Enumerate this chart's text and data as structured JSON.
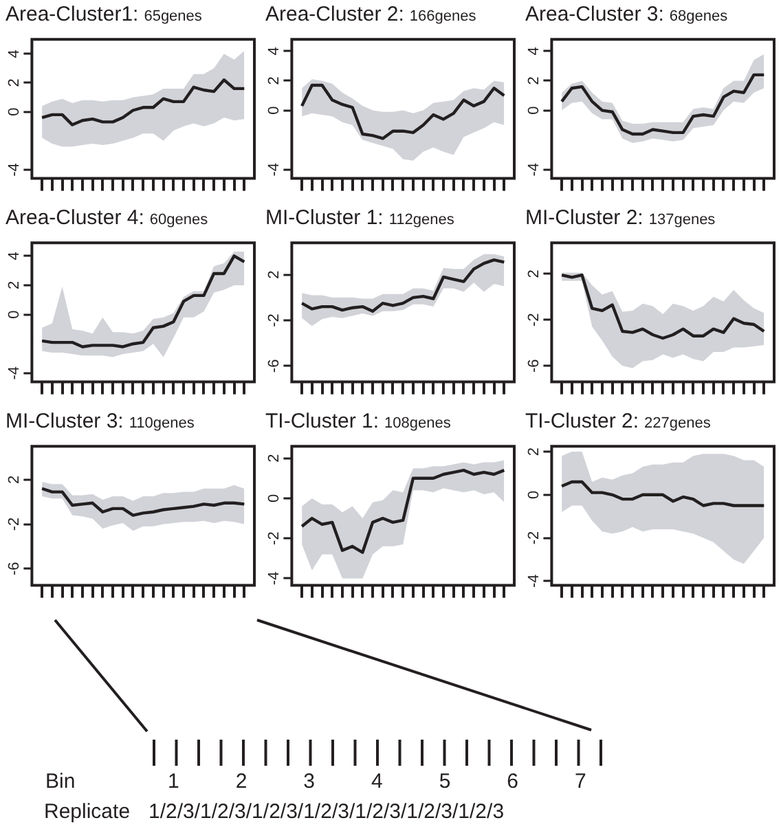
{
  "chart_data": [
    {
      "type": "line",
      "title": "Area-Cluster1:",
      "subtitle": "65genes",
      "categories": [
        null,
        null,
        null,
        null,
        null,
        null,
        null,
        null,
        null,
        null,
        null,
        null,
        null,
        null,
        null,
        null,
        null,
        null,
        null,
        null,
        null
      ],
      "ylim": [
        -4.6,
        5
      ],
      "yticks": [
        -4,
        0,
        2,
        4
      ],
      "tick_labels": "y",
      "grid": false,
      "legend": false,
      "marker": "none",
      "line_style": "solid",
      "series": [
        {
          "color": "#231f20",
          "values": [
            -0.4,
            -0.2,
            -0.2,
            -0.9,
            -0.6,
            -0.5,
            -0.7,
            -0.7,
            -0.4,
            0.1,
            0.3,
            0.3,
            0.9,
            0.7,
            0.7,
            1.7,
            1.5,
            1.4,
            2.2,
            1.6,
            1.6
          ],
          "lower": [
            -1.8,
            -2.2,
            -2.4,
            -2.4,
            -2.3,
            -2.2,
            -2.3,
            -2.2,
            -2.0,
            -1.8,
            -1.5,
            -1.5,
            -2.0,
            -1.3,
            -1.0,
            -0.8,
            -1.0,
            -0.8,
            -0.4,
            -0.6,
            -0.5
          ],
          "upper": [
            0.4,
            0.7,
            0.9,
            0.6,
            0.8,
            0.8,
            0.7,
            0.8,
            0.8,
            1.0,
            1.1,
            1.2,
            1.6,
            1.6,
            1.6,
            2.6,
            2.6,
            3.0,
            4.0,
            3.6,
            4.2
          ]
        }
      ]
    },
    {
      "type": "line",
      "title": "Area-Cluster 2:",
      "subtitle": "166genes",
      "categories": [
        null,
        null,
        null,
        null,
        null,
        null,
        null,
        null,
        null,
        null,
        null,
        null,
        null,
        null,
        null,
        null,
        null,
        null,
        null,
        null,
        null
      ],
      "ylim": [
        -4.6,
        4.8
      ],
      "yticks": [
        -4,
        0,
        2,
        4
      ],
      "tick_labels": "y",
      "grid": false,
      "legend": false,
      "marker": "none",
      "line_style": "solid",
      "series": [
        {
          "color": "#231f20",
          "values": [
            0.3,
            1.7,
            1.7,
            0.7,
            0.4,
            0.2,
            -1.6,
            -1.7,
            -1.9,
            -1.4,
            -1.4,
            -1.5,
            -1.0,
            -0.3,
            -0.6,
            -0.2,
            0.7,
            0.3,
            0.6,
            1.5,
            1.0
          ],
          "lower": [
            -0.4,
            -0.2,
            -0.3,
            -0.4,
            -0.8,
            -1.0,
            -2.0,
            -2.2,
            -2.4,
            -2.6,
            -3.3,
            -3.4,
            -2.8,
            -2.5,
            -2.8,
            -3.0,
            -1.8,
            -1.5,
            -1.2,
            -0.8,
            -1.0
          ],
          "upper": [
            1.5,
            2.1,
            2.0,
            1.8,
            1.2,
            0.8,
            0.3,
            0.0,
            -0.1,
            -0.1,
            0.0,
            -0.2,
            0.0,
            0.5,
            0.6,
            0.7,
            1.3,
            1.5,
            1.4,
            2.0,
            1.9
          ]
        }
      ]
    },
    {
      "type": "line",
      "title": "Area-Cluster 3:",
      "subtitle": "68genes",
      "categories": [
        null,
        null,
        null,
        null,
        null,
        null,
        null,
        null,
        null,
        null,
        null,
        null,
        null,
        null,
        null,
        null,
        null,
        null,
        null,
        null,
        null
      ],
      "ylim": [
        -4.6,
        4.8
      ],
      "yticks": [
        -4,
        0,
        2,
        4
      ],
      "tick_labels": "y",
      "grid": false,
      "legend": false,
      "marker": "none",
      "line_style": "solid",
      "series": [
        {
          "color": "#231f20",
          "values": [
            0.6,
            1.5,
            1.6,
            0.6,
            0,
            -0.1,
            -1.3,
            -1.6,
            -1.6,
            -1.3,
            -1.4,
            -1.5,
            -1.5,
            -0.4,
            -0.3,
            -0.4,
            0.9,
            1.3,
            1.2,
            2.4,
            2.4
          ],
          "lower": [
            0.0,
            0.5,
            0.6,
            -0.2,
            -0.6,
            -0.6,
            -1.9,
            -2.2,
            -2.1,
            -1.9,
            -2.0,
            -2.1,
            -2.0,
            -1.2,
            -1.1,
            -1.0,
            0.0,
            0.6,
            0.5,
            1.2,
            1.5
          ],
          "upper": [
            1.2,
            1.8,
            2.0,
            1.2,
            0.6,
            0.5,
            -0.7,
            -0.9,
            -0.9,
            -0.8,
            -0.8,
            -0.8,
            -0.8,
            0.1,
            0.2,
            0.1,
            1.5,
            2.0,
            2.0,
            3.4,
            3.8
          ]
        }
      ]
    },
    {
      "type": "line",
      "title": "Area-Cluster 4:",
      "subtitle": "60genes",
      "categories": [
        null,
        null,
        null,
        null,
        null,
        null,
        null,
        null,
        null,
        null,
        null,
        null,
        null,
        null,
        null,
        null,
        null,
        null,
        null,
        null,
        null
      ],
      "ylim": [
        -4.6,
        4.9
      ],
      "yticks": [
        -4,
        0,
        2,
        4
      ],
      "tick_labels": "y",
      "grid": false,
      "legend": false,
      "marker": "none",
      "line_style": "solid",
      "series": [
        {
          "color": "#231f20",
          "values": [
            -1.8,
            -1.9,
            -1.9,
            -1.9,
            -2.2,
            -2.1,
            -2.1,
            -2.1,
            -2.2,
            -2.0,
            -1.9,
            -0.9,
            -0.8,
            -0.5,
            0.9,
            1.3,
            1.3,
            2.8,
            2.8,
            4.0,
            3.6
          ],
          "lower": [
            -2.5,
            -2.6,
            -2.6,
            -2.7,
            -2.8,
            -2.8,
            -2.8,
            -2.9,
            -2.7,
            -2.6,
            -2.5,
            -2.0,
            -2.9,
            -1.6,
            -0.2,
            -0.2,
            0.2,
            1.5,
            1.7,
            2.0,
            2.0
          ],
          "upper": [
            -0.9,
            -0.6,
            1.9,
            -1.0,
            -1.1,
            -1.3,
            -0.2,
            -1.2,
            -1.2,
            -1.3,
            -1.1,
            -0.3,
            -0.2,
            0.1,
            1.2,
            1.6,
            1.6,
            3.3,
            3.5,
            4.3,
            4.3
          ]
        }
      ]
    },
    {
      "type": "line",
      "title": "MI-Cluster 1:",
      "subtitle": "112genes",
      "categories": [
        null,
        null,
        null,
        null,
        null,
        null,
        null,
        null,
        null,
        null,
        null,
        null,
        null,
        null,
        null,
        null,
        null,
        null,
        null,
        null,
        null
      ],
      "ylim": [
        -7.4,
        4.8
      ],
      "yticks": [
        -6,
        -2,
        2
      ],
      "tick_labels": "y",
      "grid": false,
      "legend": false,
      "marker": "none",
      "line_style": "solid",
      "series": [
        {
          "color": "#231f20",
          "values": [
            -0.5,
            -1.0,
            -0.8,
            -0.8,
            -1.1,
            -0.9,
            -0.8,
            -1.2,
            -0.5,
            -0.7,
            -0.5,
            0.0,
            0.1,
            -0.1,
            1.8,
            1.6,
            1.4,
            2.5,
            3.0,
            3.3,
            3.1
          ],
          "lower": [
            -1.8,
            -2.5,
            -1.9,
            -1.7,
            -1.8,
            -1.6,
            -1.4,
            -1.6,
            -1.2,
            -1.2,
            -1.1,
            -0.6,
            -0.6,
            -0.8,
            0.8,
            0.8,
            0.5,
            1.3,
            0.5,
            1.2,
            1.0
          ],
          "upper": [
            0.4,
            0.2,
            0.2,
            0.0,
            0.0,
            0.0,
            -0.1,
            -0.1,
            0.3,
            0.3,
            0.3,
            0.8,
            0.8,
            0.6,
            2.6,
            2.5,
            2.5,
            3.3,
            3.8,
            3.8,
            3.6
          ]
        }
      ]
    },
    {
      "type": "line",
      "title": "MI-Cluster 2:",
      "subtitle": "137genes",
      "categories": [
        null,
        null,
        null,
        null,
        null,
        null,
        null,
        null,
        null,
        null,
        null,
        null,
        null,
        null,
        null,
        null,
        null,
        null,
        null,
        null,
        null
      ],
      "ylim": [
        -7.4,
        4.7
      ],
      "yticks": [
        -6,
        -2,
        2
      ],
      "tick_labels": "y",
      "grid": false,
      "legend": false,
      "marker": "none",
      "line_style": "solid",
      "series": [
        {
          "color": "#231f20",
          "values": [
            1.9,
            1.7,
            1.9,
            -1.0,
            -1.2,
            -0.7,
            -3.0,
            -3.1,
            -2.8,
            -3.3,
            -3.6,
            -3.3,
            -2.8,
            -3.4,
            -3.4,
            -2.8,
            -3.1,
            -1.9,
            -2.3,
            -2.4,
            -3.0
          ],
          "lower": [
            1.4,
            1.4,
            1.4,
            -2.6,
            -3.8,
            -5.2,
            -6.0,
            -6.2,
            -5.6,
            -5.5,
            -5.0,
            -5.3,
            -5.0,
            -5.4,
            -5.6,
            -4.8,
            -4.8,
            -4.4,
            -4.4,
            -4.3,
            -4.2
          ],
          "upper": [
            2.1,
            2.1,
            2.1,
            1.0,
            0.2,
            0.5,
            -1.3,
            -1.2,
            -0.6,
            -0.8,
            -1.5,
            -0.6,
            -0.8,
            -1.2,
            -0.8,
            0.0,
            -0.4,
            0.6,
            -0.3,
            -1.0,
            -1.4
          ]
        }
      ]
    },
    {
      "type": "line",
      "title": "MI-Cluster 3:",
      "subtitle": "110genes",
      "categories": [
        null,
        null,
        null,
        null,
        null,
        null,
        null,
        null,
        null,
        null,
        null,
        null,
        null,
        null,
        null,
        null,
        null,
        null,
        null,
        null,
        null
      ],
      "ylim": [
        -7.5,
        5.0
      ],
      "yticks": [
        -6,
        -2,
        2
      ],
      "tick_labels": "y",
      "grid": false,
      "legend": false,
      "marker": "none",
      "line_style": "solid",
      "annotations": [
        "Bin",
        "1",
        "2",
        "3",
        "4",
        "5",
        "6",
        "7",
        "Replicate",
        "1/2/3/1/2/3/1/2/3/1/2/3/1/2/3/1/2/3/1/2/3"
      ],
      "series": [
        {
          "color": "#231f20",
          "values": [
            1.2,
            0.9,
            0.9,
            -0.3,
            -0.2,
            -0.1,
            -0.9,
            -0.6,
            -0.6,
            -1.2,
            -1.0,
            -0.9,
            -0.7,
            -0.6,
            -0.5,
            -0.4,
            -0.2,
            -0.3,
            -0.1,
            -0.1,
            -0.2
          ],
          "lower": [
            0.5,
            0.3,
            0.3,
            -1.2,
            -1.3,
            -1.5,
            -2.4,
            -2.1,
            -1.9,
            -2.6,
            -2.2,
            -2.2,
            -2.0,
            -1.9,
            -1.8,
            -1.8,
            -1.7,
            -1.9,
            -1.7,
            -1.8,
            -2.0
          ],
          "upper": [
            1.8,
            1.6,
            1.6,
            0.6,
            0.6,
            0.7,
            0.2,
            0.5,
            0.5,
            0.1,
            0.5,
            0.5,
            0.8,
            0.8,
            0.9,
            0.9,
            1.2,
            1.2,
            1.2,
            1.5,
            1.2
          ]
        }
      ]
    },
    {
      "type": "line",
      "title": "TI-Cluster 1:",
      "subtitle": "108genes",
      "categories": [
        null,
        null,
        null,
        null,
        null,
        null,
        null,
        null,
        null,
        null,
        null,
        null,
        null,
        null,
        null,
        null,
        null,
        null,
        null,
        null,
        null
      ],
      "ylim": [
        -4.35,
        2.6
      ],
      "yticks": [
        -4,
        -2,
        0,
        2
      ],
      "tick_labels": "y",
      "grid": false,
      "legend": false,
      "marker": "none",
      "line_style": "solid",
      "series": [
        {
          "color": "#231f20",
          "values": [
            -1.4,
            -1.0,
            -1.3,
            -1.2,
            -2.6,
            -2.4,
            -2.7,
            -1.2,
            -1.0,
            -1.2,
            -1.1,
            1.0,
            1.0,
            1.0,
            1.2,
            1.3,
            1.4,
            1.2,
            1.3,
            1.2,
            1.4
          ],
          "lower": [
            -2.3,
            -3.6,
            -2.8,
            -2.8,
            -4.0,
            -4.0,
            -4.0,
            -2.8,
            -2.4,
            -2.4,
            -2.3,
            0.4,
            0.4,
            0.3,
            0.5,
            0.4,
            0.3,
            0.4,
            0.2,
            0.3,
            -0.2
          ],
          "upper": [
            -0.4,
            0.0,
            -0.3,
            -0.3,
            -0.7,
            -0.4,
            -1.0,
            -0.2,
            -0.1,
            0.4,
            0.3,
            1.5,
            1.5,
            1.6,
            1.6,
            1.7,
            1.8,
            1.7,
            1.8,
            1.8,
            1.9
          ]
        }
      ]
    },
    {
      "type": "line",
      "title": "TI-Cluster 2:",
      "subtitle": "227genes",
      "categories": [
        null,
        null,
        null,
        null,
        null,
        null,
        null,
        null,
        null,
        null,
        null,
        null,
        null,
        null,
        null,
        null,
        null,
        null,
        null,
        null,
        null
      ],
      "ylim": [
        -4.2,
        2.25
      ],
      "yticks": [
        -4,
        -2,
        0,
        2
      ],
      "tick_labels": "y",
      "grid": false,
      "legend": false,
      "marker": "none",
      "line_style": "solid",
      "series": [
        {
          "color": "#231f20",
          "values": [
            0.4,
            0.6,
            0.6,
            0.1,
            0.1,
            0,
            -0.2,
            -0.2,
            0,
            0,
            0,
            -0.3,
            -0.1,
            -0.2,
            -0.5,
            -0.4,
            -0.4,
            -0.5,
            -0.5,
            -0.5,
            -0.5
          ],
          "lower": [
            -0.8,
            -0.5,
            -0.5,
            -1.2,
            -1.7,
            -1.8,
            -1.7,
            -1.5,
            -1.7,
            -1.6,
            -1.6,
            -1.6,
            -1.7,
            -1.8,
            -2.0,
            -2.2,
            -2.6,
            -3.0,
            -3.2,
            -2.6,
            -2.0
          ],
          "upper": [
            1.8,
            2.0,
            2.0,
            0.6,
            0.8,
            0.7,
            0.9,
            1.0,
            1.3,
            1.4,
            1.4,
            1.5,
            1.5,
            1.8,
            1.9,
            1.9,
            1.9,
            1.8,
            1.6,
            1.6,
            1.3
          ]
        }
      ]
    }
  ]
}
